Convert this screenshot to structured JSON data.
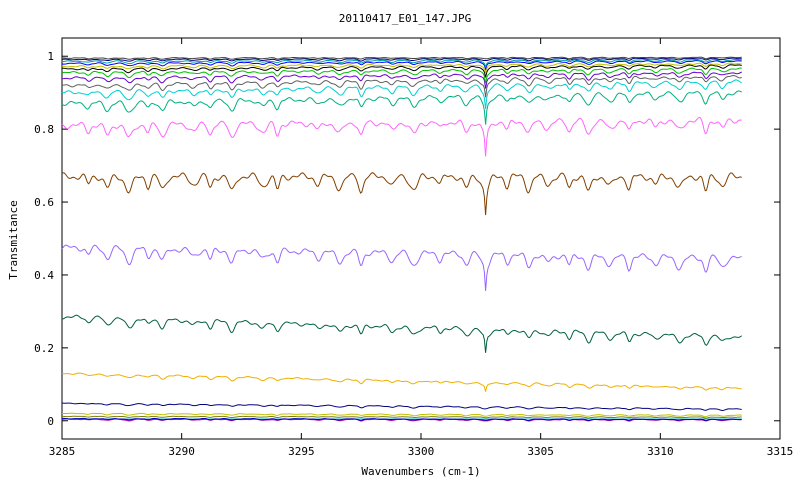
{
  "chart_data": {
    "type": "line",
    "title": "20110417_E01_147.JPG",
    "xlabel": "Wavenumbers (cm-1)",
    "ylabel": "Transmitance",
    "xlim": [
      3285,
      3315
    ],
    "ylim": [
      -0.05,
      1.05
    ],
    "data_xrange": [
      3285,
      3313.4
    ],
    "x_ticks": [
      3285,
      3290,
      3295,
      3300,
      3305,
      3310,
      3315
    ],
    "x_tick_labels": [
      "3285",
      "3290",
      "3295",
      "3300",
      "3305",
      "3310",
      "3315"
    ],
    "y_ticks": [
      0,
      0.2,
      0.4,
      0.6,
      0.8,
      1
    ],
    "y_tick_labels": [
      "0",
      "0.2",
      "0.4",
      "0.6",
      "0.8",
      "1"
    ],
    "grid": false,
    "legend": "none",
    "absorption_lines_x": [
      3286.1,
      3286.9,
      3287.8,
      3288.6,
      3289.2,
      3290.5,
      3291.2,
      3292.1,
      3293.4,
      3294.0,
      3295.7,
      3296.6,
      3297.5,
      3298.8,
      3299.7,
      3300.8,
      3301.9,
      3302.7,
      3303.6,
      3304.5,
      3305.3,
      3306.2,
      3307.0,
      3307.9,
      3308.7,
      3309.8,
      3310.8,
      3311.9,
      3312.6
    ],
    "strong_line_x": 3302.7,
    "series": [
      {
        "color": "#00c0c0",
        "start": 0.005,
        "end": 0.005,
        "depth": 0.0
      },
      {
        "color": "#c000c0",
        "start": 0.004,
        "end": 0.003,
        "depth": 0.003
      },
      {
        "color": "#0000c0",
        "start": 0.006,
        "end": 0.004,
        "depth": 0.003
      },
      {
        "color": "#808000",
        "start": 0.012,
        "end": 0.01,
        "depth": 0.002
      },
      {
        "color": "#c0c000",
        "start": 0.02,
        "end": 0.015,
        "depth": 0.003
      },
      {
        "color": "#000080",
        "start": 0.048,
        "end": 0.032,
        "depth": 0.004
      },
      {
        "color": "#f0b000",
        "start": 0.13,
        "end": 0.09,
        "depth": 0.008
      },
      {
        "color": "#006040",
        "start": 0.285,
        "end": 0.23,
        "depth": 0.02
      },
      {
        "color": "#9966ff",
        "start": 0.475,
        "end": 0.445,
        "depth": 0.03
      },
      {
        "color": "#804000",
        "start": 0.67,
        "end": 0.67,
        "depth": 0.035
      },
      {
        "color": "#ff66ff",
        "start": 0.81,
        "end": 0.825,
        "depth": 0.03
      },
      {
        "color": "#00b080",
        "start": 0.87,
        "end": 0.9,
        "depth": 0.022
      },
      {
        "color": "#00d0d0",
        "start": 0.9,
        "end": 0.93,
        "depth": 0.018
      },
      {
        "color": "#606060",
        "start": 0.92,
        "end": 0.945,
        "depth": 0.015
      },
      {
        "color": "#6600cc",
        "start": 0.94,
        "end": 0.955,
        "depth": 0.012
      },
      {
        "color": "#00c000",
        "start": 0.955,
        "end": 0.965,
        "depth": 0.01
      },
      {
        "color": "#000000",
        "start": 0.965,
        "end": 0.975,
        "depth": 0.008
      },
      {
        "color": "#c0c000",
        "start": 0.972,
        "end": 0.98,
        "depth": 0.007
      },
      {
        "color": "#0000ff",
        "start": 0.98,
        "end": 0.987,
        "depth": 0.006
      },
      {
        "color": "#00a0a0",
        "start": 0.986,
        "end": 0.99,
        "depth": 0.005
      },
      {
        "color": "#000080",
        "start": 0.991,
        "end": 0.994,
        "depth": 0.004
      },
      {
        "color": "#404040",
        "start": 0.995,
        "end": 0.997,
        "depth": 0.003
      }
    ]
  }
}
